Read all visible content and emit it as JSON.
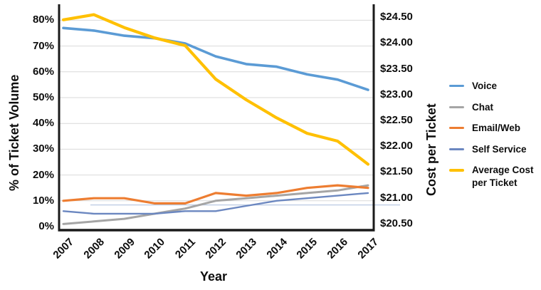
{
  "chart_data": {
    "type": "line",
    "xlabel": "Year",
    "categories": [
      "2007",
      "2008",
      "2009",
      "2010",
      "2011",
      "2012",
      "2013",
      "2014",
      "2015",
      "2016",
      "2017"
    ],
    "left_axis": {
      "label": "% of Ticket Volume",
      "tick_labels": [
        "0%",
        "10%",
        "20%",
        "30%",
        "40%",
        "50%",
        "60%",
        "70%",
        "80%"
      ],
      "tick_values": [
        0,
        10,
        20,
        30,
        40,
        50,
        60,
        70,
        80
      ],
      "min": 0,
      "max": 80,
      "grid": true
    },
    "right_axis": {
      "label": "Cost per Ticket",
      "tick_labels": [
        "$20.50",
        "$21.00",
        "$21.50",
        "$22.00",
        "$22.50",
        "$23.00",
        "$23.50",
        "$24.00",
        "$24.50"
      ],
      "tick_values": [
        20.5,
        21.0,
        21.5,
        22.0,
        22.5,
        23.0,
        23.5,
        24.0,
        24.5
      ],
      "min": 20.5,
      "max": 24.5,
      "grid": false
    },
    "series": [
      {
        "name": "Voice",
        "axis": "left",
        "color": "#5B9BD5",
        "width": 3.6,
        "values": [
          77,
          76,
          74,
          73,
          71,
          66,
          63,
          62,
          59,
          57,
          53
        ]
      },
      {
        "name": "Chat",
        "axis": "left",
        "color": "#A5A5A5",
        "width": 3.0,
        "values": [
          1,
          2,
          3,
          5,
          7,
          10,
          11,
          12,
          13,
          14,
          16
        ]
      },
      {
        "name": "Email/Web",
        "axis": "left",
        "color": "#ED7D31",
        "width": 3.2,
        "values": [
          10,
          11,
          11,
          9,
          9,
          13,
          12,
          13,
          15,
          16,
          15
        ]
      },
      {
        "name": "Self Service",
        "axis": "left",
        "color": "#6B87C0",
        "width": 2.4,
        "values": [
          6,
          5,
          5,
          5,
          6,
          6,
          8,
          10,
          11,
          12,
          13
        ]
      },
      {
        "name": "Average Cost per Ticket",
        "axis": "right",
        "color": "#FFC000",
        "width": 4.2,
        "values": [
          24.45,
          24.55,
          24.3,
          24.1,
          23.95,
          23.3,
          22.9,
          22.55,
          22.25,
          22.1,
          21.65
        ]
      }
    ],
    "legend": {
      "position": "right",
      "labels": [
        "Voice",
        "Chat",
        "Email/Web",
        "Self Service",
        "Average Cost per Ticket"
      ]
    },
    "annotation_line": {
      "left_axis_value": 8.4,
      "color": "#b9c9e2"
    },
    "grid_color": "#d9d9d9",
    "axis_color": "#1a1a1a",
    "background": "#ffffff"
  }
}
